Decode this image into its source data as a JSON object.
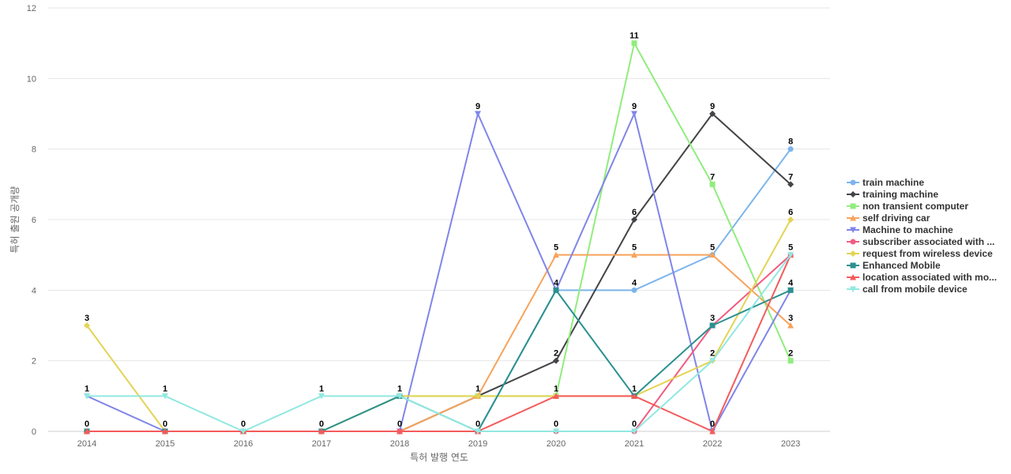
{
  "chart_data": {
    "type": "line",
    "title": "",
    "xlabel": "특허 발행 연도",
    "ylabel": "특허 출원 공개량",
    "x": [
      "2014",
      "2015",
      "2016",
      "2017",
      "2018",
      "2019",
      "2020",
      "2021",
      "2022",
      "2023"
    ],
    "ylim": [
      0,
      12
    ],
    "yticks": [
      0,
      2,
      4,
      6,
      8,
      10,
      12
    ],
    "grid": true,
    "legend_position": "right",
    "series": [
      {
        "name": "train machine",
        "color": "#7cb5ec",
        "marker": "circle",
        "values": [
          0,
          0,
          0,
          0,
          0,
          0,
          4,
          4,
          5,
          8
        ]
      },
      {
        "name": "training machine",
        "color": "#434348",
        "marker": "diamond",
        "values": [
          0,
          0,
          0,
          0,
          0,
          1,
          2,
          6,
          9,
          7
        ]
      },
      {
        "name": "non transient computer",
        "color": "#90ed7d",
        "marker": "square",
        "values": [
          0,
          0,
          0,
          0,
          1,
          1,
          1,
          11,
          7,
          2
        ]
      },
      {
        "name": "self driving car",
        "color": "#f7a35c",
        "marker": "triangle",
        "values": [
          0,
          0,
          0,
          0,
          0,
          1,
          5,
          5,
          5,
          3
        ]
      },
      {
        "name": "Machine to machine",
        "color": "#8085e9",
        "marker": "triangle-down",
        "values": [
          1,
          0,
          0,
          0,
          0,
          9,
          4,
          9,
          0,
          4
        ]
      },
      {
        "name": "subscriber associated with ...",
        "color": "#f15c80",
        "marker": "circle",
        "values": [
          0,
          0,
          0,
          0,
          0,
          0,
          0,
          0,
          3,
          5
        ]
      },
      {
        "name": "request from wireless device",
        "color": "#e4d354",
        "marker": "diamond",
        "values": [
          3,
          0,
          0,
          0,
          1,
          1,
          1,
          1,
          2,
          6
        ]
      },
      {
        "name": "Enhanced Mobile",
        "color": "#2b908f",
        "marker": "square",
        "values": [
          0,
          0,
          0,
          0,
          1,
          0,
          4,
          1,
          3,
          4
        ]
      },
      {
        "name": "location associated with mo...",
        "color": "#f45b5b",
        "marker": "triangle",
        "values": [
          0,
          0,
          0,
          0,
          0,
          0,
          1,
          1,
          0,
          5
        ]
      },
      {
        "name": "call from mobile device",
        "color": "#91e8e1",
        "marker": "triangle-down",
        "values": [
          1,
          1,
          0,
          1,
          1,
          0,
          0,
          0,
          2,
          5
        ]
      }
    ],
    "data_labels": [
      {
        "x": "2014",
        "y": 3,
        "text": "3"
      },
      {
        "x": "2014",
        "y": 1,
        "text": "1"
      },
      {
        "x": "2014",
        "y": 0,
        "text": "0"
      },
      {
        "x": "2015",
        "y": 1,
        "text": "1"
      },
      {
        "x": "2015",
        "y": 0,
        "text": "0"
      },
      {
        "x": "2016",
        "y": 0,
        "text": "0"
      },
      {
        "x": "2017",
        "y": 1,
        "text": "1"
      },
      {
        "x": "2017",
        "y": 0,
        "text": "0"
      },
      {
        "x": "2018",
        "y": 1,
        "text": "1"
      },
      {
        "x": "2018",
        "y": 0,
        "text": "0"
      },
      {
        "x": "2019",
        "y": 9,
        "text": "9"
      },
      {
        "x": "2019",
        "y": 1,
        "text": "1"
      },
      {
        "x": "2019",
        "y": 0,
        "text": "0"
      },
      {
        "x": "2020",
        "y": 5,
        "text": "5"
      },
      {
        "x": "2020",
        "y": 4,
        "text": "4"
      },
      {
        "x": "2020",
        "y": 2,
        "text": "2"
      },
      {
        "x": "2020",
        "y": 1,
        "text": "1"
      },
      {
        "x": "2020",
        "y": 0,
        "text": "0"
      },
      {
        "x": "2021",
        "y": 11,
        "text": "11"
      },
      {
        "x": "2021",
        "y": 9,
        "text": "9"
      },
      {
        "x": "2021",
        "y": 6,
        "text": "6"
      },
      {
        "x": "2021",
        "y": 5,
        "text": "5"
      },
      {
        "x": "2021",
        "y": 4,
        "text": "4"
      },
      {
        "x": "2021",
        "y": 1,
        "text": "1"
      },
      {
        "x": "2021",
        "y": 0,
        "text": "0"
      },
      {
        "x": "2022",
        "y": 9,
        "text": "9"
      },
      {
        "x": "2022",
        "y": 7,
        "text": "7"
      },
      {
        "x": "2022",
        "y": 5,
        "text": "5"
      },
      {
        "x": "2022",
        "y": 3,
        "text": "3"
      },
      {
        "x": "2022",
        "y": 2,
        "text": "2"
      },
      {
        "x": "2022",
        "y": 0,
        "text": "0"
      },
      {
        "x": "2023",
        "y": 8,
        "text": "8"
      },
      {
        "x": "2023",
        "y": 7,
        "text": "7"
      },
      {
        "x": "2023",
        "y": 6,
        "text": "6"
      },
      {
        "x": "2023",
        "y": 5,
        "text": "5"
      },
      {
        "x": "2023",
        "y": 4,
        "text": "4"
      },
      {
        "x": "2023",
        "y": 3,
        "text": "3"
      },
      {
        "x": "2023",
        "y": 2,
        "text": "2"
      }
    ]
  }
}
